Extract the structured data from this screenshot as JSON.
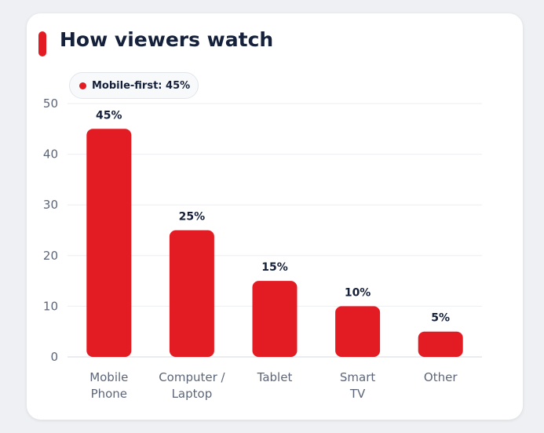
{
  "card": {
    "title": "How viewers watch"
  },
  "annotation": {
    "label": "Mobile-first: 45%"
  },
  "colors": {
    "accent": "#e31b23",
    "grid": "#eceef2",
    "axis": "#d6d9df"
  },
  "chart_data": {
    "type": "bar",
    "title": "How viewers watch",
    "xlabel": "",
    "ylabel": "",
    "categories": [
      [
        "Mobile",
        "Phone"
      ],
      [
        "Computer /",
        "Laptop"
      ],
      [
        "Tablet"
      ],
      [
        "Smart",
        "TV"
      ],
      [
        "Other"
      ]
    ],
    "values": [
      45,
      25,
      15,
      10,
      5
    ],
    "value_labels": [
      "45%",
      "25%",
      "15%",
      "10%",
      "5%"
    ],
    "ylim": [
      0,
      50
    ],
    "yticks": [
      0,
      10,
      20,
      30,
      40,
      50
    ],
    "grid": true,
    "legend": "none"
  }
}
